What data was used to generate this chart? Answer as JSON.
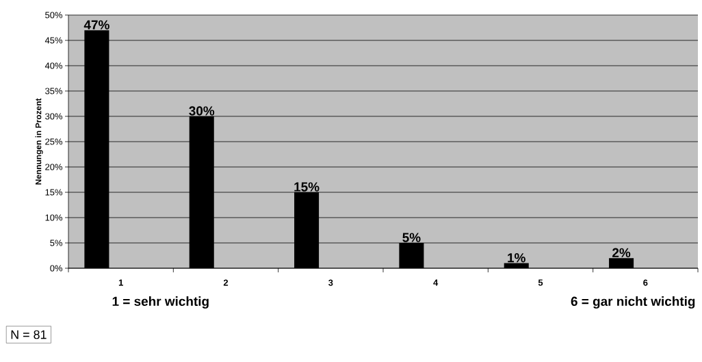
{
  "chart_data": {
    "type": "bar",
    "ylabel": "Nennungen in Prozent",
    "categories": [
      "1",
      "2",
      "3",
      "4",
      "5",
      "6"
    ],
    "values": [
      47,
      30,
      15,
      5,
      1,
      2
    ],
    "value_labels": [
      "47%",
      "30%",
      "15%",
      "5%",
      "1%",
      "2%"
    ],
    "color": "#000000",
    "ylim": [
      0,
      50
    ],
    "yticks": [
      {
        "value": 0,
        "label": "0%"
      },
      {
        "value": 5,
        "label": "5%"
      },
      {
        "value": 10,
        "label": "10%"
      },
      {
        "value": 15,
        "label": "15%"
      },
      {
        "value": 20,
        "label": "20%"
      },
      {
        "value": 25,
        "label": "25%"
      },
      {
        "value": 30,
        "label": "30%"
      },
      {
        "value": 35,
        "label": "35%"
      },
      {
        "value": 40,
        "label": "40%"
      },
      {
        "value": 45,
        "label": "45%"
      },
      {
        "value": 50,
        "label": "50%"
      }
    ],
    "grid": "y",
    "annotations": [
      "1 = sehr wichtig",
      "6 =  gar nicht wichtig",
      "N = 81"
    ]
  }
}
